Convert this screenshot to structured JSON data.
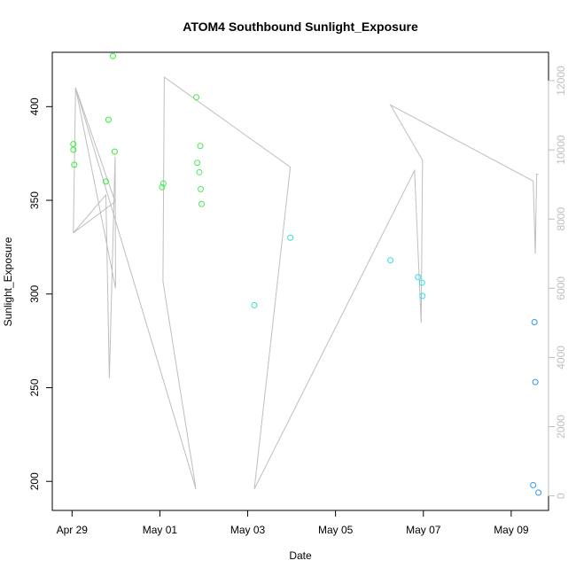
{
  "chart_data": {
    "type": "scatter",
    "title": "ATOM4 Southbound Sunlight_Exposure",
    "xlabel": "Date",
    "ylabel": "Sunlight_Exposure",
    "x_ticks": [
      "Apr 29",
      "May 01",
      "May 03",
      "May 05",
      "May 07",
      "May 09"
    ],
    "x_tick_values": [
      0,
      2,
      4,
      6,
      8,
      10
    ],
    "xlim": [
      -0.45,
      10.85
    ],
    "ylim": [
      184.5,
      429.0
    ],
    "y_ticks": [
      200,
      250,
      300,
      350,
      400
    ],
    "y2lim": [
      -420,
      12820
    ],
    "y2_ticks": [
      0,
      2000,
      4000,
      6000,
      8000,
      10000,
      12000
    ],
    "grid": false,
    "points": [
      {
        "x": 0.03,
        "y": 380,
        "color": "#33ee33"
      },
      {
        "x": 0.03,
        "y": 377,
        "color": "#33ee33"
      },
      {
        "x": 0.05,
        "y": 369,
        "color": "#33ee33"
      },
      {
        "x": 0.77,
        "y": 360,
        "color": "#33ee33"
      },
      {
        "x": 0.83,
        "y": 393,
        "color": "#33ee33"
      },
      {
        "x": 0.93,
        "y": 427,
        "color": "#33ee33"
      },
      {
        "x": 0.97,
        "y": 376,
        "color": "#33ee33"
      },
      {
        "x": 2.05,
        "y": 357,
        "color": "#44ee55"
      },
      {
        "x": 2.08,
        "y": 359,
        "color": "#44ee55"
      },
      {
        "x": 2.83,
        "y": 405,
        "color": "#44ee55"
      },
      {
        "x": 2.85,
        "y": 370,
        "color": "#44ee55"
      },
      {
        "x": 2.9,
        "y": 365,
        "color": "#44ee55"
      },
      {
        "x": 2.92,
        "y": 379,
        "color": "#44ee55"
      },
      {
        "x": 2.93,
        "y": 356,
        "color": "#44ee55"
      },
      {
        "x": 2.95,
        "y": 348,
        "color": "#44ee55"
      },
      {
        "x": 4.15,
        "y": 294,
        "color": "#33ddcc"
      },
      {
        "x": 4.97,
        "y": 330,
        "color": "#33ddcc"
      },
      {
        "x": 7.25,
        "y": 318,
        "color": "#33ddee"
      },
      {
        "x": 7.88,
        "y": 309,
        "color": "#33ddee"
      },
      {
        "x": 7.97,
        "y": 306,
        "color": "#33ddee"
      },
      {
        "x": 7.98,
        "y": 299,
        "color": "#33ddee"
      },
      {
        "x": 10.53,
        "y": 285,
        "color": "#3399ee"
      },
      {
        "x": 10.55,
        "y": 253,
        "color": "#3399ee"
      },
      {
        "x": 10.5,
        "y": 198,
        "color": "#3399ee"
      },
      {
        "x": 10.62,
        "y": 194,
        "color": "#3399ee"
      }
    ],
    "line_series": {
      "axis": "right",
      "color": "#bebebe",
      "points": [
        {
          "x": 0.03,
          "y": 7600
        },
        {
          "x": 0.08,
          "y": 11800
        },
        {
          "x": 0.98,
          "y": 8500
        },
        {
          "x": 0.03,
          "y": 7600
        },
        {
          "x": 0.77,
          "y": 8700
        },
        {
          "x": 0.85,
          "y": 3400
        },
        {
          "x": 0.98,
          "y": 9800
        },
        {
          "x": 0.99,
          "y": 6000
        },
        {
          "x": 0.08,
          "y": 11800
        },
        {
          "x": 2.82,
          "y": 200
        },
        {
          "x": 2.07,
          "y": 6200
        },
        {
          "x": 2.1,
          "y": 12100
        },
        {
          "x": 4.97,
          "y": 9500
        },
        {
          "x": 4.15,
          "y": 200
        },
        {
          "x": 7.8,
          "y": 9400
        },
        {
          "x": 7.95,
          "y": 5000
        },
        {
          "x": 7.98,
          "y": 9700
        },
        {
          "x": 7.25,
          "y": 11300
        },
        {
          "x": 10.5,
          "y": 9100
        },
        {
          "x": 10.55,
          "y": 7000
        },
        {
          "x": 10.58,
          "y": 9300
        },
        {
          "x": 10.62,
          "y": 9300
        }
      ]
    }
  }
}
